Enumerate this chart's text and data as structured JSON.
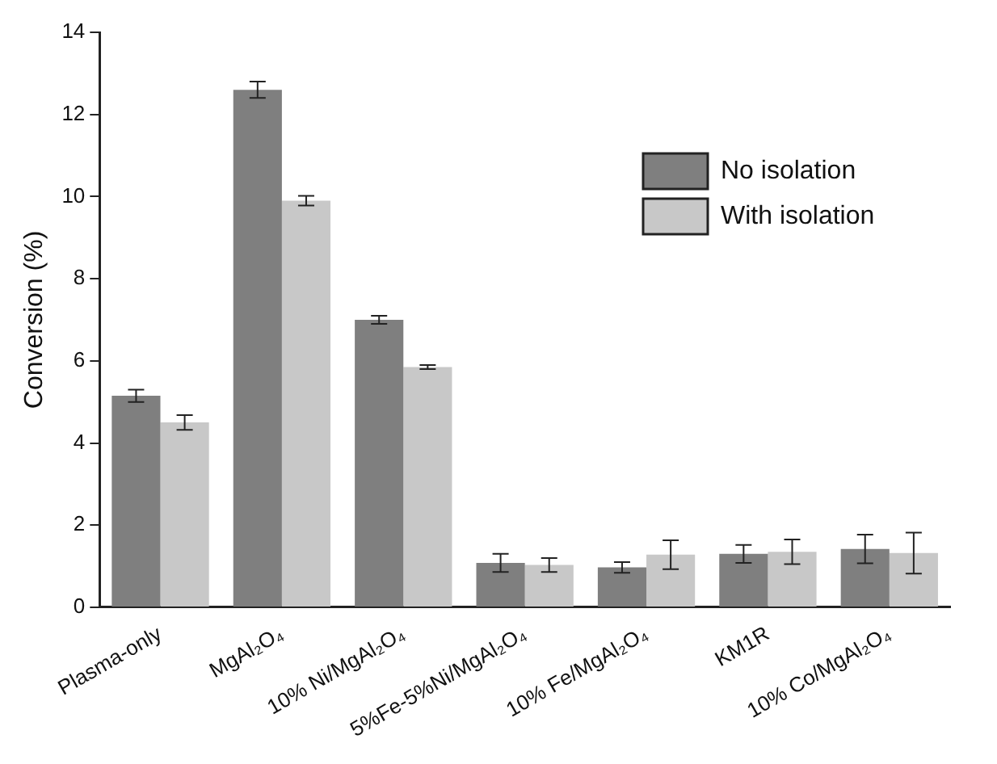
{
  "chart_data": {
    "type": "bar",
    "ylabel": "Conversion (%)",
    "categories": [
      "Plasma-only",
      "MgAl₂O₄",
      "10% Ni/MgAl₂O₄",
      "5%Fe-5%Ni/MgAl₂O₄",
      "10% Fe/MgAl₂O₄",
      "KM1R",
      "10% Co/MgAl₂O₄"
    ],
    "series": [
      {
        "name": "No isolation",
        "color": "#7f7f7f",
        "values": [
          5.15,
          12.6,
          7.0,
          1.08,
          0.97,
          1.3,
          1.42
        ],
        "errors": [
          0.15,
          0.2,
          0.1,
          0.22,
          0.13,
          0.22,
          0.35
        ]
      },
      {
        "name": "With isolation",
        "color": "#c8c8c8",
        "values": [
          4.5,
          9.9,
          5.85,
          1.03,
          1.28,
          1.35,
          1.32
        ],
        "errors": [
          0.18,
          0.12,
          0.05,
          0.17,
          0.35,
          0.3,
          0.5
        ]
      }
    ],
    "ylim": [
      0,
      14
    ],
    "yticks": [
      0,
      2,
      4,
      6,
      8,
      10,
      12,
      14
    ],
    "grid": false,
    "legend": "top right"
  }
}
